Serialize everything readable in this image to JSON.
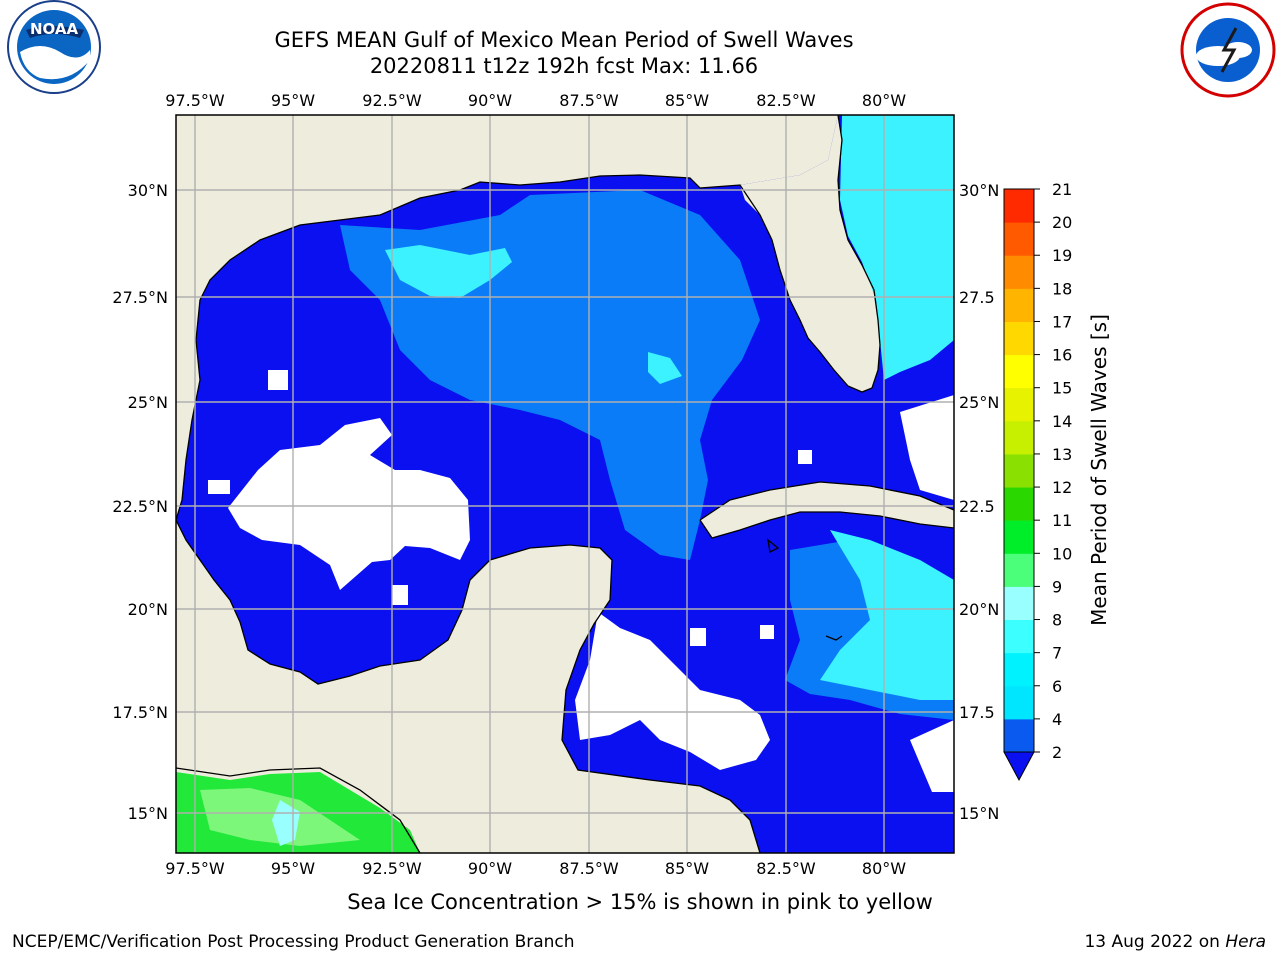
{
  "title_line1": "GEFS MEAN Gulf of Mexico Mean Period of Swell Waves",
  "title_line2": "20220811 t12z 192h fcst   Max: 11.66",
  "caption": "Sea Ice Concentration > 15% is shown in pink to yellow",
  "footer_left": "NCEP/EMC/Verification Post Processing Product Generation Branch",
  "footer_date": "13 Aug 2022 on ",
  "footer_machine": "Hera",
  "logos": {
    "left": "noaa-logo",
    "right": "national-weather-service-logo",
    "noaa_text": "NOAA"
  },
  "map": {
    "lon_labels": [
      "97.5°W",
      "95°W",
      "92.5°W",
      "90°W",
      "87.5°W",
      "85°W",
      "82.5°W",
      "80°W"
    ],
    "lat_labels_left": [
      "30°N",
      "27.5°N",
      "25°N",
      "22.5°N",
      "20°N",
      "17.5°N",
      "15°N"
    ],
    "lat_labels_right": [
      "30°N",
      "27.5",
      "25°N",
      "22.5",
      "20°N",
      "17.5",
      "15°N"
    ],
    "colors": {
      "land": "#eeecdc",
      "missing": "#ffffff",
      "grid": "#b0b0b0",
      "coast": "#000000"
    }
  },
  "colorbar": {
    "label": "Mean Period of Swell Waves [s]",
    "ticks": [
      "2",
      "4",
      "6",
      "7",
      "8",
      "9",
      "10",
      "11",
      "12",
      "13",
      "14",
      "15",
      "16",
      "17",
      "18",
      "19",
      "20",
      "21"
    ],
    "colors": [
      "#0a5af0",
      "#00e6ff",
      "#00f2ff",
      "#3cffff",
      "#9affff",
      "#4cff7a",
      "#00ee2a",
      "#2ad800",
      "#8ae000",
      "#c6f000",
      "#e6f200",
      "#ffff00",
      "#ffd800",
      "#ffb400",
      "#ff8c00",
      "#ff5a00",
      "#ff2a00",
      "#ff0000"
    ],
    "extend_color": "#0a10f0"
  }
}
